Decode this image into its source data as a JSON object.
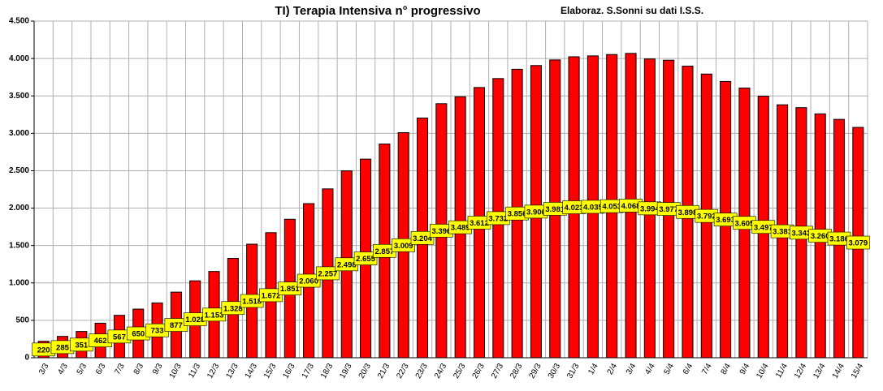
{
  "chart_data": {
    "type": "bar",
    "title": "TI) Terapia Intensiva  n° progressivo",
    "subtitle": "Elaboraz. S.Sonni su dati I.S.S.",
    "categories": [
      "3/3",
      "4/3",
      "5/3",
      "6/3",
      "7/3",
      "8/3",
      "9/3",
      "10/3",
      "11/3",
      "12/3",
      "13/3",
      "14/3",
      "15/3",
      "16/3",
      "17/3",
      "18/3",
      "19/3",
      "20/3",
      "21/3",
      "22/3",
      "23/3",
      "24/3",
      "25/3",
      "26/3",
      "27/3",
      "28/3",
      "29/3",
      "30/3",
      "31/3",
      "1/4",
      "2/4",
      "3/4",
      "4/4",
      "5/4",
      "6/4",
      "7/4",
      "8/4",
      "9/4",
      "10/4",
      "11/4",
      "12/4",
      "13/4",
      "14/4",
      "15/4"
    ],
    "values": [
      220,
      285,
      351,
      462,
      567,
      650,
      733,
      877,
      1028,
      1153,
      1328,
      1518,
      1672,
      1851,
      2060,
      2257,
      2498,
      2655,
      2857,
      3009,
      3204,
      3396,
      3489,
      3612,
      3732,
      3856,
      3906,
      3981,
      4023,
      4035,
      4053,
      4068,
      3994,
      3977,
      3898,
      3792,
      3693,
      3605,
      3497,
      3381,
      3343,
      3260,
      3186,
      3079
    ],
    "value_labels": [
      "220",
      "285",
      "351",
      "462",
      "567",
      "650",
      "733",
      "877",
      "1.028",
      "1.153",
      "1.328",
      "1.518",
      "1.672",
      "1.851",
      "2.060",
      "2.257",
      "2.498",
      "2.655",
      "2.857",
      "3.009",
      "3.204",
      "3.396",
      "3.489",
      "3.612",
      "3.732",
      "3.856",
      "3.906",
      "3.981",
      "4.023",
      "4.035",
      "4.053",
      "4.068",
      "3.994",
      "3.977",
      "3.898",
      "3.792",
      "3.693",
      "3.605",
      "3.497",
      "3.381",
      "3.343",
      "3.260",
      "3.186",
      "3.079"
    ],
    "color": "#ff0000",
    "ylim": [
      0,
      4500
    ],
    "yticks": [
      0,
      500,
      {
        "value": 1000,
        "label": "1.000"
      },
      {
        "value": 1500,
        "label": "1.500"
      },
      {
        "value": 2000,
        "label": "2.000"
      },
      {
        "value": 2500,
        "label": "2.500"
      },
      {
        "value": 3000,
        "label": "3.000"
      },
      {
        "value": 3500,
        "label": "3.500"
      },
      {
        "value": 4000,
        "label": "4.000"
      },
      {
        "value": 4500,
        "label": "4.500"
      }
    ],
    "grid": true
  }
}
